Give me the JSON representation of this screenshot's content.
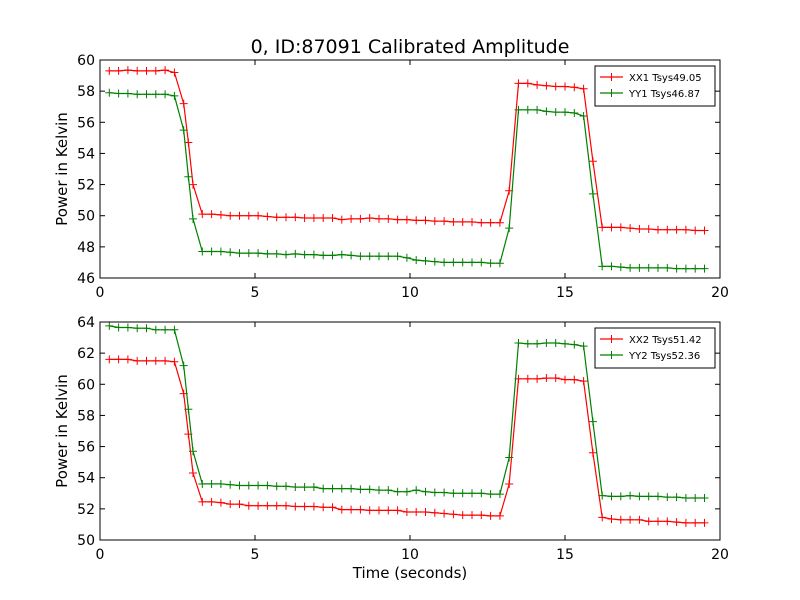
{
  "figure": {
    "title": "0, ID:87091 Calibrated Amplitude"
  },
  "chart_data": [
    {
      "type": "line",
      "title": "0, ID:87091 Calibrated Amplitude",
      "xlabel": "",
      "ylabel": "Power in Kelvin",
      "xlim": [
        0,
        20
      ],
      "ylim": [
        46,
        60
      ],
      "xticks": [
        0,
        5,
        10,
        15,
        20
      ],
      "yticks": [
        46,
        48,
        50,
        52,
        54,
        56,
        58,
        60
      ],
      "grid": false,
      "legend": "top-right",
      "x": [
        0.3,
        0.6,
        0.9,
        1.2,
        1.5,
        1.8,
        2.1,
        2.4,
        2.7,
        2.85,
        3.0,
        3.3,
        3.6,
        3.9,
        4.2,
        4.5,
        4.8,
        5.1,
        5.4,
        5.7,
        6.0,
        6.3,
        6.6,
        6.9,
        7.2,
        7.5,
        7.8,
        8.1,
        8.4,
        8.7,
        9.0,
        9.3,
        9.6,
        9.9,
        10.2,
        10.5,
        10.8,
        11.1,
        11.4,
        11.7,
        12.0,
        12.3,
        12.6,
        12.9,
        13.2,
        13.5,
        13.8,
        14.1,
        14.4,
        14.7,
        15.0,
        15.3,
        15.6,
        15.9,
        16.2,
        16.5,
        16.8,
        17.1,
        17.4,
        17.7,
        18.0,
        18.3,
        18.6,
        18.9,
        19.2,
        19.5
      ],
      "series": [
        {
          "name": "XX1 Tsys49.05",
          "color": "#ff0000",
          "values": [
            59.3,
            59.3,
            59.35,
            59.3,
            59.3,
            59.3,
            59.35,
            59.2,
            57.2,
            54.7,
            52.0,
            50.1,
            50.1,
            50.05,
            50.0,
            50.0,
            50.0,
            50.0,
            49.95,
            49.9,
            49.9,
            49.9,
            49.85,
            49.85,
            49.85,
            49.85,
            49.75,
            49.8,
            49.8,
            49.85,
            49.8,
            49.8,
            49.75,
            49.75,
            49.7,
            49.7,
            49.65,
            49.65,
            49.6,
            49.6,
            49.6,
            49.55,
            49.55,
            49.55,
            51.6,
            58.5,
            58.5,
            58.4,
            58.35,
            58.3,
            58.3,
            58.25,
            58.15,
            53.5,
            49.25,
            49.25,
            49.25,
            49.2,
            49.15,
            49.15,
            49.1,
            49.1,
            49.1,
            49.1,
            49.05,
            49.05
          ]
        },
        {
          "name": "YY1 Tsys46.87",
          "color": "#008000",
          "values": [
            57.9,
            57.85,
            57.85,
            57.8,
            57.8,
            57.8,
            57.8,
            57.7,
            55.5,
            52.5,
            49.8,
            47.7,
            47.7,
            47.7,
            47.65,
            47.6,
            47.6,
            47.6,
            47.55,
            47.55,
            47.5,
            47.55,
            47.5,
            47.5,
            47.45,
            47.45,
            47.5,
            47.45,
            47.4,
            47.4,
            47.4,
            47.4,
            47.4,
            47.3,
            47.15,
            47.1,
            47.05,
            47.0,
            47.0,
            47.0,
            47.0,
            47.0,
            46.95,
            46.95,
            49.2,
            56.8,
            56.8,
            56.8,
            56.7,
            56.65,
            56.65,
            56.6,
            56.4,
            51.4,
            46.75,
            46.75,
            46.7,
            46.65,
            46.65,
            46.65,
            46.65,
            46.65,
            46.6,
            46.6,
            46.6,
            46.6
          ]
        }
      ]
    },
    {
      "type": "line",
      "title": "",
      "xlabel": "Time (seconds)",
      "ylabel": "Power in Kelvin",
      "xlim": [
        0,
        20
      ],
      "ylim": [
        50,
        64
      ],
      "xticks": [
        0,
        5,
        10,
        15,
        20
      ],
      "yticks": [
        50,
        52,
        54,
        56,
        58,
        60,
        62,
        64
      ],
      "grid": false,
      "legend": "top-right",
      "x": [
        0.3,
        0.6,
        0.9,
        1.2,
        1.5,
        1.8,
        2.1,
        2.4,
        2.7,
        2.85,
        3.0,
        3.3,
        3.6,
        3.9,
        4.2,
        4.5,
        4.8,
        5.1,
        5.4,
        5.7,
        6.0,
        6.3,
        6.6,
        6.9,
        7.2,
        7.5,
        7.8,
        8.1,
        8.4,
        8.7,
        9.0,
        9.3,
        9.6,
        9.9,
        10.2,
        10.5,
        10.8,
        11.1,
        11.4,
        11.7,
        12.0,
        12.3,
        12.6,
        12.9,
        13.2,
        13.5,
        13.8,
        14.1,
        14.4,
        14.7,
        15.0,
        15.3,
        15.6,
        15.9,
        16.2,
        16.5,
        16.8,
        17.1,
        17.4,
        17.7,
        18.0,
        18.3,
        18.6,
        18.9,
        19.2,
        19.5
      ],
      "series": [
        {
          "name": "XX2 Tsys51.42",
          "color": "#ff0000",
          "values": [
            61.6,
            61.6,
            61.6,
            61.5,
            61.5,
            61.5,
            61.5,
            61.45,
            59.4,
            56.8,
            54.3,
            52.45,
            52.45,
            52.4,
            52.3,
            52.3,
            52.2,
            52.2,
            52.2,
            52.2,
            52.2,
            52.15,
            52.15,
            52.15,
            52.1,
            52.1,
            51.95,
            51.95,
            51.95,
            51.9,
            51.9,
            51.9,
            51.9,
            51.8,
            51.8,
            51.8,
            51.75,
            51.7,
            51.65,
            51.6,
            51.6,
            51.6,
            51.55,
            51.55,
            53.6,
            60.35,
            60.35,
            60.35,
            60.4,
            60.4,
            60.3,
            60.3,
            60.2,
            55.6,
            51.45,
            51.35,
            51.3,
            51.3,
            51.3,
            51.2,
            51.2,
            51.2,
            51.15,
            51.1,
            51.1,
            51.1
          ]
        },
        {
          "name": "YY2 Tsys52.36",
          "color": "#008000",
          "values": [
            63.75,
            63.65,
            63.65,
            63.6,
            63.6,
            63.5,
            63.5,
            63.5,
            61.2,
            58.4,
            55.7,
            53.6,
            53.6,
            53.6,
            53.55,
            53.5,
            53.5,
            53.5,
            53.5,
            53.45,
            53.45,
            53.4,
            53.4,
            53.4,
            53.3,
            53.3,
            53.3,
            53.3,
            53.25,
            53.25,
            53.2,
            53.2,
            53.1,
            53.1,
            53.2,
            53.1,
            53.05,
            53.05,
            53.0,
            53.0,
            53.0,
            53.0,
            52.95,
            52.95,
            55.3,
            62.65,
            62.6,
            62.6,
            62.65,
            62.65,
            62.6,
            62.55,
            62.45,
            57.6,
            52.85,
            52.8,
            52.8,
            52.85,
            52.8,
            52.8,
            52.8,
            52.75,
            52.75,
            52.7,
            52.7,
            52.7
          ]
        }
      ]
    }
  ]
}
